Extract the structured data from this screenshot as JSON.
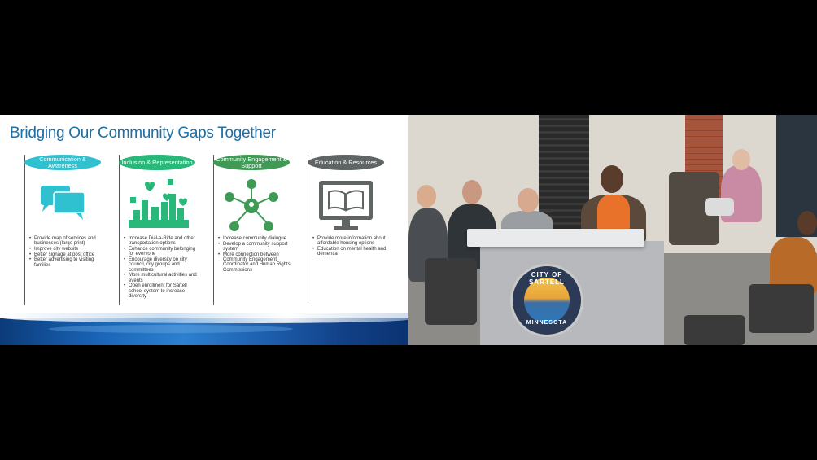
{
  "slide": {
    "title": "Bridging Our Community Gaps Together",
    "columns": [
      {
        "heading": "Communication & Awareness",
        "color": "#2fc1d0",
        "icon": "chat-bubbles-icon",
        "items": [
          "Provide map of services and businesses (large print)",
          "Improve city website",
          "Better signage at post office",
          "Better advertising to visiting families"
        ]
      },
      {
        "heading": "Inclusion & Representation",
        "color": "#2ab87a",
        "icon": "city-hearts-icon",
        "items": [
          "Increase Dial-a-Ride and other transportation options",
          "Enhance community belonging for everyone",
          "Encourage diversity on city council, city groups and committees",
          "More multicultural activities and events",
          "Open enrollment for Sartell school system to increase diversity"
        ]
      },
      {
        "heading": "Community Engagement & Support",
        "color": "#3f9a56",
        "icon": "people-network-icon",
        "items": [
          "Increase community dialogue",
          "Develop a community support system",
          "More connection between Community Engagement Coordinator and Human Rights Commissions"
        ]
      },
      {
        "heading": "Education & Resources",
        "color": "#5f6465",
        "icon": "book-monitor-icon",
        "items": [
          "Provide more information about affordable housing options",
          "Education on mental health and dementia"
        ]
      }
    ]
  },
  "video": {
    "seal_top": "CITY OF SARTELL",
    "seal_bottom": "MINNESOTA"
  }
}
